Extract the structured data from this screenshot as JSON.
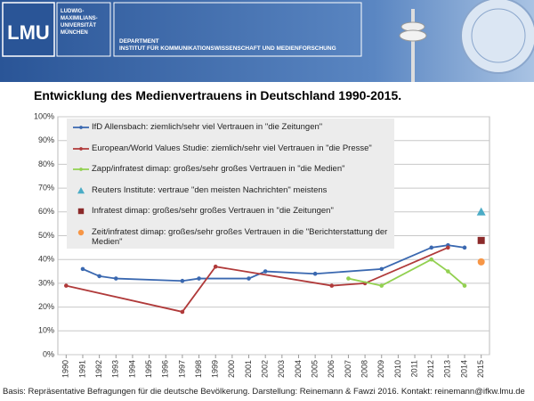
{
  "header": {
    "logo": "LMU",
    "university": [
      "LUDWIG-",
      "MAXIMILIANS-",
      "UNIVERSITÄT",
      "MÜNCHEN"
    ],
    "department": "DEPARTMENT",
    "institute": "INSTITUT FÜR KOMMUNIKATIONSWISSENSCHAFT UND MEDIENFORSCHUNG"
  },
  "chart_data": {
    "type": "line",
    "title": "Entwicklung des Medienvertrauens in Deutschland 1990-2015.",
    "xlim": [
      1989.5,
      2015.5
    ],
    "xticks": [
      1990,
      1991,
      1992,
      1993,
      1994,
      1995,
      1996,
      1997,
      1998,
      1999,
      2000,
      2001,
      2002,
      2003,
      2004,
      2005,
      2006,
      2007,
      2008,
      2009,
      2010,
      2011,
      2012,
      2013,
      2014,
      2015
    ],
    "ylim": [
      0,
      100
    ],
    "yticks": [
      {
        "value": 0,
        "label": "0%"
      },
      {
        "value": 10,
        "label": "10%"
      },
      {
        "value": 20,
        "label": "20%"
      },
      {
        "value": 30,
        "label": "30%"
      },
      {
        "value": 40,
        "label": "40%"
      },
      {
        "value": 50,
        "label": "50%"
      },
      {
        "value": 60,
        "label": "60%"
      },
      {
        "value": 70,
        "label": "70%"
      },
      {
        "value": 80,
        "label": "80%"
      },
      {
        "value": 90,
        "label": "90%"
      },
      {
        "value": 100,
        "label": "100%"
      }
    ],
    "grid": true,
    "legend": "top-left",
    "series": [
      {
        "name": "IfD Allensbach: ziemlich/sehr viel Vertrauen in \"die Zeitungen\"",
        "color": "#3a68b0",
        "marker": "circle",
        "line": true,
        "x": [
          1991,
          1992,
          1993,
          1997,
          1998,
          2001,
          2002,
          2005,
          2009,
          2012,
          2013,
          2014
        ],
        "values": [
          36,
          33,
          32,
          31,
          32,
          32,
          35,
          34,
          36,
          45,
          46,
          45
        ]
      },
      {
        "name": "European/World Values Studie: ziemlich/sehr viel Vertrauen in \"die Presse\"",
        "color": "#b03a3a",
        "marker": "circle",
        "line": true,
        "x": [
          1990,
          1997,
          1999,
          2006,
          2008,
          2013
        ],
        "values": [
          29,
          18,
          37,
          29,
          30,
          45
        ]
      },
      {
        "name": "Zapp/infratest dimap: großes/sehr großes Vertrauen in \"die Medien\"",
        "color": "#92d050",
        "marker": "circle",
        "line": true,
        "x": [
          2007,
          2009,
          2012,
          2013,
          2014
        ],
        "values": [
          32,
          29,
          40,
          35,
          29
        ]
      },
      {
        "name": "Reuters Institute: vertraue \"den meisten Nachrichten\" meistens",
        "color": "#4bacc6",
        "marker": "triangle",
        "line": false,
        "x": [
          2015
        ],
        "values": [
          60
        ]
      },
      {
        "name": "Infratest dimap: großes/sehr großes Vertrauen in \"die Zeitungen\"",
        "color": "#8b2a2a",
        "marker": "square",
        "line": false,
        "x": [
          2015
        ],
        "values": [
          48
        ]
      },
      {
        "name": "Zeit/infratest dimap: großes/sehr großes Vertrauen in die \"Berichterstattung der Medien\"",
        "color": "#f79646",
        "marker": "circle-large",
        "line": false,
        "x": [
          2015
        ],
        "values": [
          39
        ]
      }
    ]
  },
  "footer": "Basis: Repräsentative Befragungen für die deutsche Bevölkerung. Darstellung: Reinemann & Fawzi 2016. Kontakt: reinemann@ifkw.lmu.de"
}
